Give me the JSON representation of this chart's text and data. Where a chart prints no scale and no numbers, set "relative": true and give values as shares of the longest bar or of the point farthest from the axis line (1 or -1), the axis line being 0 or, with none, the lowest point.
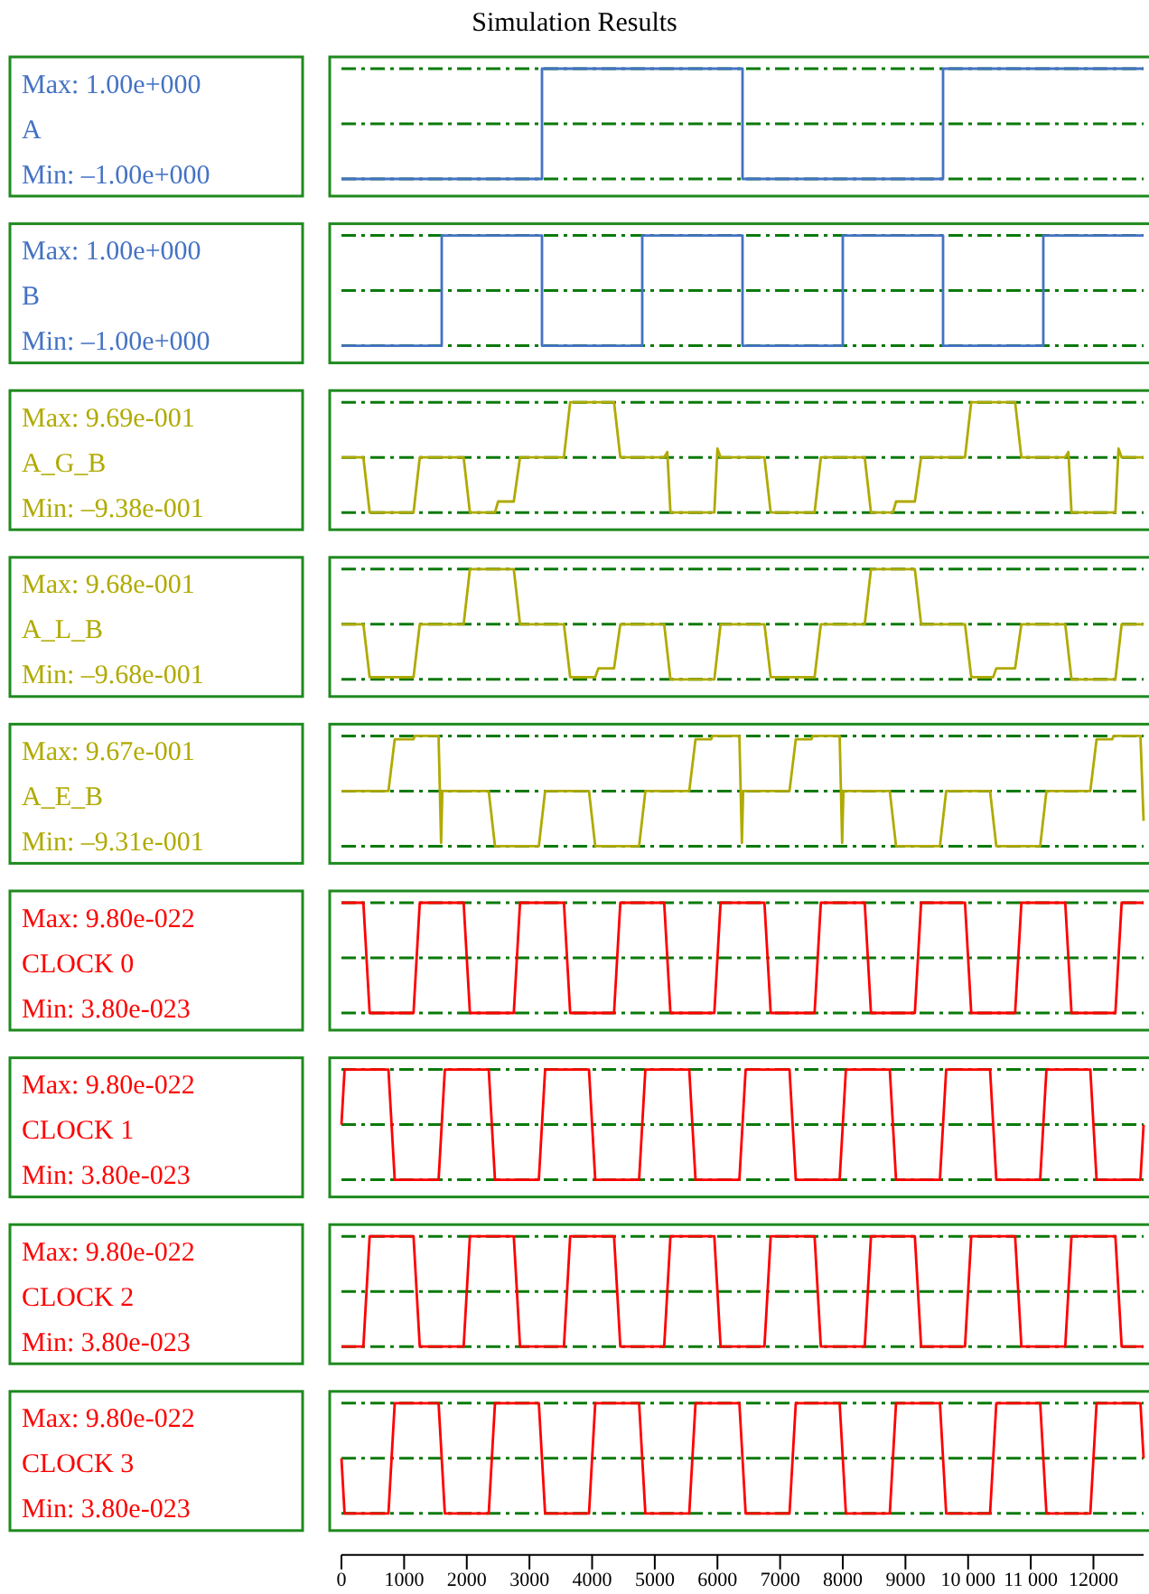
{
  "chart_data": [
    {
      "type": "line",
      "relative": true,
      "title": "Simulation Results",
      "ylabel": "A",
      "annotations": [
        "Max: 1.00e+000",
        "Min: –1.00e+000"
      ],
      "xlim": [
        0,
        12800
      ],
      "line_style": "solid",
      "ref_lines": [
        {
          "axis": "y",
          "value": 1,
          "color": "#0a7a0a",
          "line_style": "dashed"
        },
        {
          "axis": "y",
          "value": 0.5,
          "color": "#0a7a0a",
          "line_style": "dashed"
        },
        {
          "axis": "y",
          "value": 0,
          "color": "#0a7a0a",
          "line_style": "dashed"
        }
      ],
      "series": [
        {
          "color": "#4472c4",
          "x": [
            0,
            3200,
            3200,
            6400,
            6400,
            9600,
            9600,
            12800
          ],
          "values": [
            0,
            0,
            1,
            1,
            0,
            0,
            1,
            1
          ]
        }
      ]
    },
    {
      "type": "line",
      "relative": true,
      "ylabel": "B",
      "annotations": [
        "Max: 1.00e+000",
        "Min: –1.00e+000"
      ],
      "xlim": [
        0,
        12800
      ],
      "line_style": "solid",
      "ref_lines": [
        {
          "axis": "y",
          "value": 1,
          "color": "#0a7a0a",
          "line_style": "dashed"
        },
        {
          "axis": "y",
          "value": 0.5,
          "color": "#0a7a0a",
          "line_style": "dashed"
        },
        {
          "axis": "y",
          "value": 0,
          "color": "#0a7a0a",
          "line_style": "dashed"
        }
      ],
      "series": [
        {
          "color": "#4472c4",
          "x": [
            0,
            1600,
            1600,
            3200,
            3200,
            4800,
            4800,
            6400,
            6400,
            8000,
            8000,
            9600,
            9600,
            11200,
            11200,
            12800
          ],
          "values": [
            0,
            0,
            1,
            1,
            0,
            0,
            1,
            1,
            0,
            0,
            1,
            1,
            0,
            0,
            1,
            1
          ]
        }
      ]
    },
    {
      "type": "line",
      "relative": true,
      "ylabel": "A_G_B",
      "annotations": [
        "Max: 9.69e-001",
        "Min: –9.38e-001"
      ],
      "xlim": [
        0,
        12800
      ],
      "line_style": "solid",
      "ref_lines": [
        {
          "axis": "y",
          "value": 1,
          "color": "#0a7a0a",
          "line_style": "dashed"
        },
        {
          "axis": "y",
          "value": 0.5,
          "color": "#0a7a0a",
          "line_style": "dashed"
        },
        {
          "axis": "y",
          "value": 0,
          "color": "#0a7a0a",
          "line_style": "dashed"
        }
      ],
      "series": [
        {
          "color": "#b0aa00",
          "x": [
            0,
            350,
            450,
            1150,
            1250,
            1950,
            2050,
            2450,
            2500,
            2750,
            2850,
            3550,
            3650,
            4350,
            4450,
            5150,
            5200,
            5250,
            5950,
            6000,
            6050,
            6750,
            6850,
            7550,
            7650,
            8350,
            8450,
            8800,
            8850,
            9150,
            9250,
            9950,
            10050,
            10750,
            10850,
            11550,
            11600,
            11650,
            12350,
            12400,
            12450,
            12800
          ],
          "values": [
            0.5,
            0.5,
            0,
            0,
            0.5,
            0.5,
            0,
            0,
            0.1,
            0.1,
            0.5,
            0.5,
            1,
            1,
            0.5,
            0.5,
            0.55,
            0,
            0,
            0.58,
            0.5,
            0.5,
            0,
            0,
            0.5,
            0.5,
            0,
            0,
            0.1,
            0.1,
            0.5,
            0.5,
            1,
            1,
            0.5,
            0.5,
            0.55,
            0,
            0,
            0.58,
            0.5,
            0.5
          ]
        }
      ]
    },
    {
      "type": "line",
      "relative": true,
      "ylabel": "A_L_B",
      "annotations": [
        "Max: 9.68e-001",
        "Min: –9.68e-001"
      ],
      "xlim": [
        0,
        12800
      ],
      "line_style": "solid",
      "ref_lines": [
        {
          "axis": "y",
          "value": 1,
          "color": "#0a7a0a",
          "line_style": "dashed"
        },
        {
          "axis": "y",
          "value": 0.5,
          "color": "#0a7a0a",
          "line_style": "dashed"
        },
        {
          "axis": "y",
          "value": 0,
          "color": "#0a7a0a",
          "line_style": "dashed"
        }
      ],
      "series": [
        {
          "color": "#b0aa00",
          "x": [
            0,
            350,
            450,
            1150,
            1250,
            1950,
            2050,
            2750,
            2850,
            3550,
            3650,
            4050,
            4100,
            4350,
            4450,
            5150,
            5250,
            5950,
            6050,
            6750,
            6850,
            7550,
            7650,
            8350,
            8450,
            9150,
            9250,
            9950,
            10050,
            10400,
            10450,
            10750,
            10850,
            11550,
            11650,
            12350,
            12450,
            12800
          ],
          "values": [
            0.5,
            0.5,
            0.02,
            0.02,
            0.5,
            0.5,
            1,
            1,
            0.5,
            0.5,
            0.02,
            0.02,
            0.1,
            0.1,
            0.5,
            0.5,
            0,
            0,
            0.5,
            0.5,
            0.02,
            0.02,
            0.5,
            0.5,
            1,
            1,
            0.5,
            0.5,
            0.02,
            0.02,
            0.1,
            0.1,
            0.5,
            0.5,
            0,
            0,
            0.5,
            0.5
          ]
        }
      ]
    },
    {
      "type": "line",
      "relative": true,
      "ylabel": "A_E_B",
      "annotations": [
        "Max: 9.67e-001",
        "Min: –9.31e-001"
      ],
      "xlim": [
        0,
        12800
      ],
      "line_style": "solid",
      "ref_lines": [
        {
          "axis": "y",
          "value": 1,
          "color": "#0a7a0a",
          "line_style": "dashed"
        },
        {
          "axis": "y",
          "value": 0.5,
          "color": "#0a7a0a",
          "line_style": "dashed"
        },
        {
          "axis": "y",
          "value": 0,
          "color": "#0a7a0a",
          "line_style": "dashed"
        }
      ],
      "series": [
        {
          "color": "#b0aa00",
          "x": [
            0,
            750,
            850,
            1150,
            1170,
            1550,
            1590,
            1610,
            2350,
            2450,
            3150,
            3250,
            3950,
            4050,
            4750,
            4850,
            5550,
            5650,
            5900,
            5920,
            6350,
            6390,
            6410,
            7150,
            7250,
            7500,
            7520,
            7950,
            7990,
            8010,
            8750,
            8850,
            9550,
            9650,
            10350,
            10450,
            11150,
            11250,
            11950,
            12050,
            12300,
            12320,
            12750,
            12800
          ],
          "values": [
            0.5,
            0.5,
            0.97,
            0.97,
            1,
            1,
            0.03,
            0.5,
            0.5,
            0,
            0,
            0.5,
            0.5,
            0,
            0,
            0.5,
            0.5,
            0.97,
            0.97,
            1,
            1,
            0.03,
            0.5,
            0.5,
            0.97,
            0.97,
            1,
            1,
            0.03,
            0.5,
            0.5,
            0,
            0,
            0.5,
            0.5,
            0,
            0,
            0.5,
            0.5,
            0.97,
            0.97,
            1,
            1,
            0.23
          ]
        }
      ]
    },
    {
      "type": "line",
      "relative": true,
      "ylabel": "CLOCK 0",
      "annotations": [
        "Max: 9.80e-022",
        "Min: 3.80e-023"
      ],
      "xlim": [
        0,
        12800
      ],
      "line_style": "solid",
      "ref_lines": [
        {
          "axis": "y",
          "value": 1,
          "color": "#0a7a0a",
          "line_style": "dashed"
        },
        {
          "axis": "y",
          "value": 0.5,
          "color": "#0a7a0a",
          "line_style": "dashed"
        },
        {
          "axis": "y",
          "value": 0,
          "color": "#0a7a0a",
          "line_style": "dashed"
        }
      ],
      "series": [
        {
          "color": "#ff0000",
          "x": [
            0,
            350,
            450,
            1150,
            1250,
            1950,
            2050,
            2750,
            2850,
            3550,
            3650,
            4350,
            4450,
            5150,
            5250,
            5950,
            6050,
            6750,
            6850,
            7550,
            7650,
            8350,
            8450,
            9150,
            9250,
            9950,
            10050,
            10750,
            10850,
            11550,
            11650,
            12350,
            12450,
            12800
          ],
          "values": [
            1,
            1,
            0,
            0,
            1,
            1,
            0,
            0,
            1,
            1,
            0,
            0,
            1,
            1,
            0,
            0,
            1,
            1,
            0,
            0,
            1,
            1,
            0,
            0,
            1,
            1,
            0,
            0,
            1,
            1,
            0,
            0,
            1,
            1
          ]
        }
      ]
    },
    {
      "type": "line",
      "relative": true,
      "ylabel": "CLOCK 1",
      "annotations": [
        "Max: 9.80e-022",
        "Min: 3.80e-023"
      ],
      "xlim": [
        0,
        12800
      ],
      "line_style": "solid",
      "ref_lines": [
        {
          "axis": "y",
          "value": 1,
          "color": "#0a7a0a",
          "line_style": "dashed"
        },
        {
          "axis": "y",
          "value": 0.5,
          "color": "#0a7a0a",
          "line_style": "dashed"
        },
        {
          "axis": "y",
          "value": 0,
          "color": "#0a7a0a",
          "line_style": "dashed"
        }
      ],
      "series": [
        {
          "color": "#ff0000",
          "x": [
            0,
            50,
            750,
            850,
            1550,
            1650,
            2350,
            2450,
            3150,
            3250,
            3950,
            4050,
            4750,
            4850,
            5550,
            5650,
            6350,
            6450,
            7150,
            7250,
            7950,
            8050,
            8750,
            8850,
            9550,
            9650,
            10350,
            10450,
            11150,
            11250,
            11950,
            12050,
            12750,
            12800
          ],
          "values": [
            0.5,
            1,
            1,
            0,
            0,
            1,
            1,
            0,
            0,
            1,
            1,
            0,
            0,
            1,
            1,
            0,
            0,
            1,
            1,
            0,
            0,
            1,
            1,
            0,
            0,
            1,
            1,
            0,
            0,
            1,
            1,
            0,
            0,
            0.5
          ]
        }
      ]
    },
    {
      "type": "line",
      "relative": true,
      "ylabel": "CLOCK 2",
      "annotations": [
        "Max: 9.80e-022",
        "Min: 3.80e-023"
      ],
      "xlim": [
        0,
        12800
      ],
      "line_style": "solid",
      "ref_lines": [
        {
          "axis": "y",
          "value": 1,
          "color": "#0a7a0a",
          "line_style": "dashed"
        },
        {
          "axis": "y",
          "value": 0.5,
          "color": "#0a7a0a",
          "line_style": "dashed"
        },
        {
          "axis": "y",
          "value": 0,
          "color": "#0a7a0a",
          "line_style": "dashed"
        }
      ],
      "series": [
        {
          "color": "#ff0000",
          "x": [
            0,
            350,
            450,
            1150,
            1250,
            1950,
            2050,
            2750,
            2850,
            3550,
            3650,
            4350,
            4450,
            5150,
            5250,
            5950,
            6050,
            6750,
            6850,
            7550,
            7650,
            8350,
            8450,
            9150,
            9250,
            9950,
            10050,
            10750,
            10850,
            11550,
            11650,
            12350,
            12450,
            12800
          ],
          "values": [
            0,
            0,
            1,
            1,
            0,
            0,
            1,
            1,
            0,
            0,
            1,
            1,
            0,
            0,
            1,
            1,
            0,
            0,
            1,
            1,
            0,
            0,
            1,
            1,
            0,
            0,
            1,
            1,
            0,
            0,
            1,
            1,
            0,
            0
          ]
        }
      ]
    },
    {
      "type": "line",
      "relative": true,
      "ylabel": "CLOCK 3",
      "annotations": [
        "Max: 9.80e-022",
        "Min: 3.80e-023"
      ],
      "xlim": [
        0,
        12800
      ],
      "tick_labels": "x",
      "line_style": "solid",
      "ref_lines": [
        {
          "axis": "y",
          "value": 1,
          "color": "#0a7a0a",
          "line_style": "dashed"
        },
        {
          "axis": "y",
          "value": 0.5,
          "color": "#0a7a0a",
          "line_style": "dashed"
        },
        {
          "axis": "y",
          "value": 0,
          "color": "#0a7a0a",
          "line_style": "dashed"
        }
      ],
      "xticks": [
        0,
        1000,
        2000,
        3000,
        4000,
        5000,
        6000,
        7000,
        8000,
        9000,
        {
          "value": 10000,
          "label": "10 000"
        },
        {
          "value": 11000,
          "label": "11 000"
        },
        12000
      ],
      "series": [
        {
          "color": "#ff0000",
          "x": [
            0,
            50,
            750,
            850,
            1550,
            1650,
            2350,
            2450,
            3150,
            3250,
            3950,
            4050,
            4750,
            4850,
            5550,
            5650,
            6350,
            6450,
            7150,
            7250,
            7950,
            8050,
            8750,
            8850,
            9550,
            9650,
            10350,
            10450,
            11150,
            11250,
            11950,
            12050,
            12750,
            12800
          ],
          "values": [
            0.5,
            0,
            0,
            1,
            1,
            0,
            0,
            1,
            1,
            0,
            0,
            1,
            1,
            0,
            0,
            1,
            1,
            0,
            0,
            1,
            1,
            0,
            0,
            1,
            1,
            0,
            0,
            1,
            1,
            0,
            0,
            1,
            1,
            0.5
          ]
        }
      ]
    }
  ]
}
